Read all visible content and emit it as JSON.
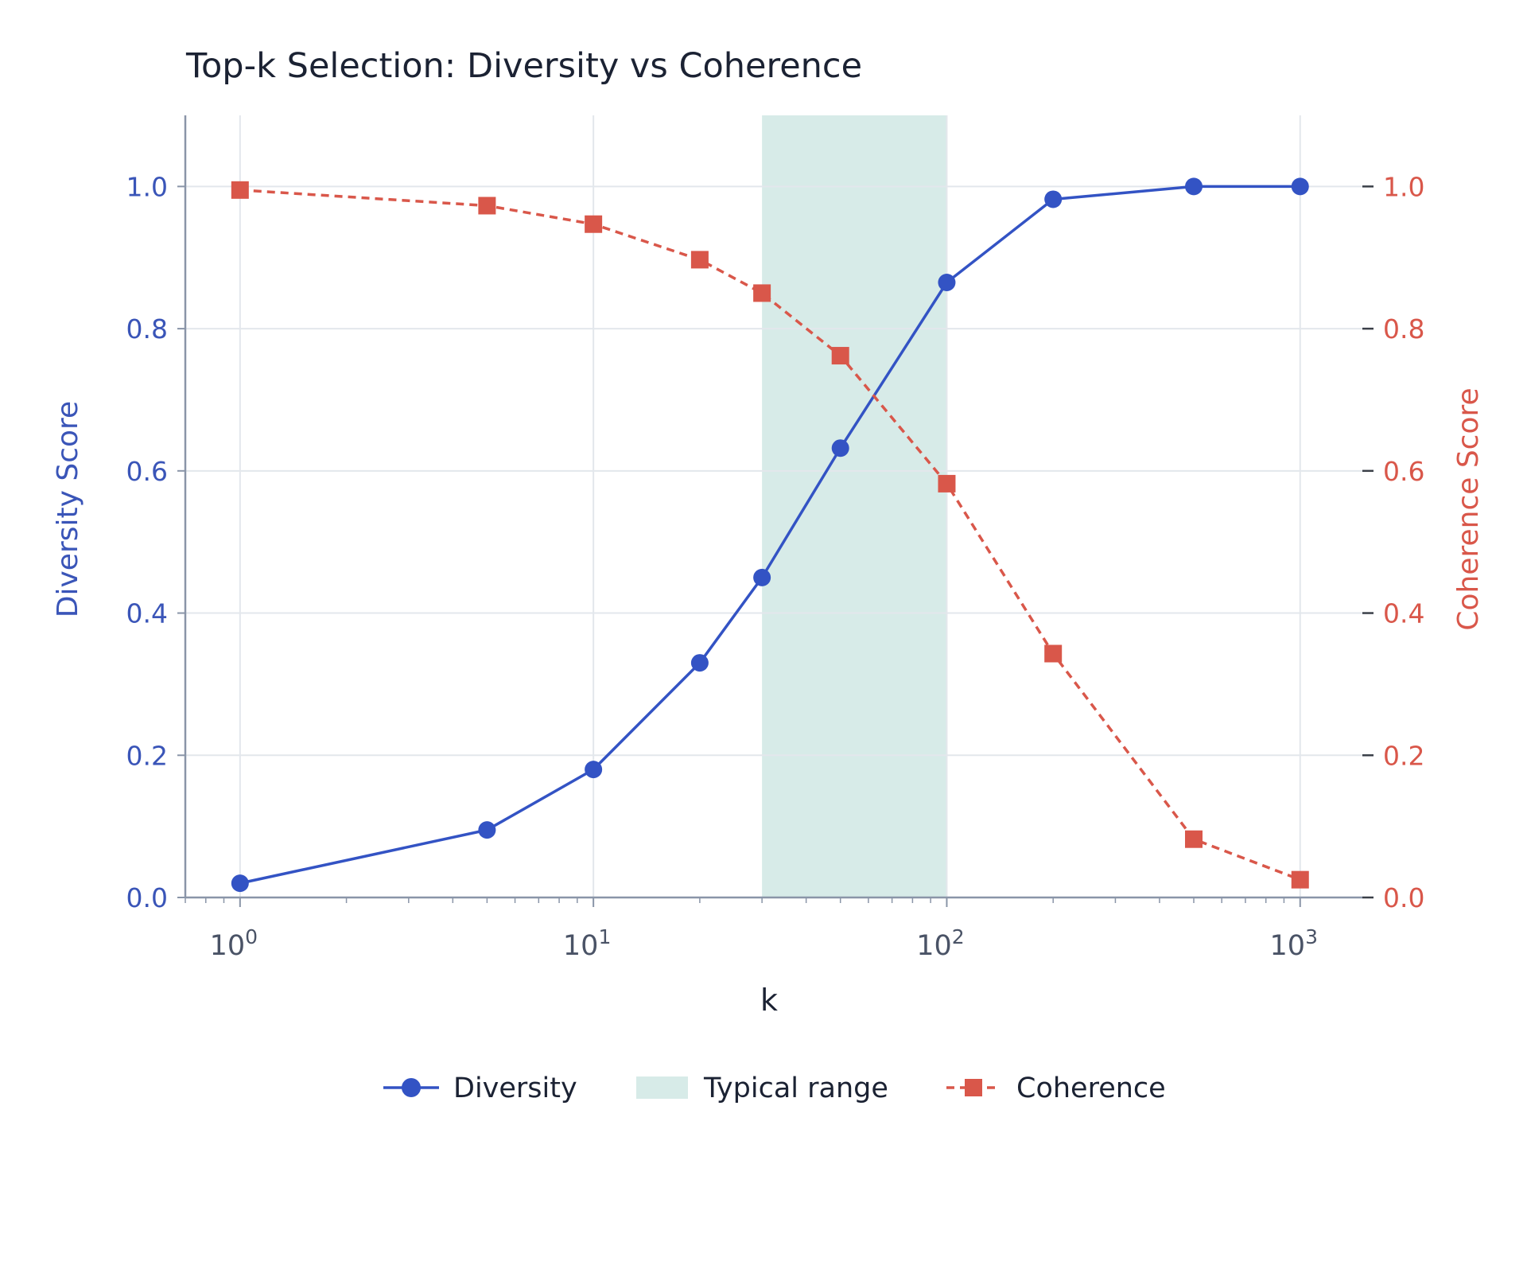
{
  "chart_data": {
    "type": "line",
    "title": "Top-k Selection: Diversity vs Coherence",
    "xlabel": "k",
    "xscale": "log",
    "xlim": [
      0.7,
      1500
    ],
    "x_ticks": [
      {
        "base": "10",
        "exp": "0",
        "value": 1
      },
      {
        "base": "10",
        "exp": "1",
        "value": 10
      },
      {
        "base": "10",
        "exp": "2",
        "value": 100
      },
      {
        "base": "10",
        "exp": "3",
        "value": 1000
      }
    ],
    "y_left": {
      "label": "Diversity Score",
      "lim": [
        0,
        1.1
      ],
      "ticks": [
        "0.0",
        "0.2",
        "0.4",
        "0.6",
        "0.8",
        "1.0"
      ],
      "color": "#3353c4"
    },
    "y_right": {
      "label": "Coherence Score",
      "lim": [
        0,
        1.1
      ],
      "ticks": [
        "0.0",
        "0.2",
        "0.4",
        "0.6",
        "0.8",
        "1.0"
      ],
      "color": "#d9574a"
    },
    "grid": true,
    "legend_position": "bottom-center",
    "shaded_region": {
      "name": "Typical range",
      "x_start": 30,
      "x_end": 100,
      "color": "#d7ebe8"
    },
    "series": [
      {
        "name": "Diversity",
        "axis": "left",
        "color": "#3353c4",
        "marker": "circle",
        "line_style": "solid",
        "x": [
          1,
          5,
          10,
          20,
          30,
          50,
          100,
          200,
          500,
          1000
        ],
        "values": [
          0.02,
          0.095,
          0.18,
          0.33,
          0.45,
          0.632,
          0.865,
          0.982,
          1.0,
          1.0
        ]
      },
      {
        "name": "Coherence",
        "axis": "right",
        "color": "#d9574a",
        "marker": "square",
        "line_style": "dashed",
        "x": [
          1,
          5,
          10,
          20,
          30,
          50,
          100,
          200,
          500,
          1000
        ],
        "values": [
          0.995,
          0.973,
          0.947,
          0.897,
          0.85,
          0.762,
          0.582,
          0.343,
          0.082,
          0.025
        ]
      }
    ]
  }
}
